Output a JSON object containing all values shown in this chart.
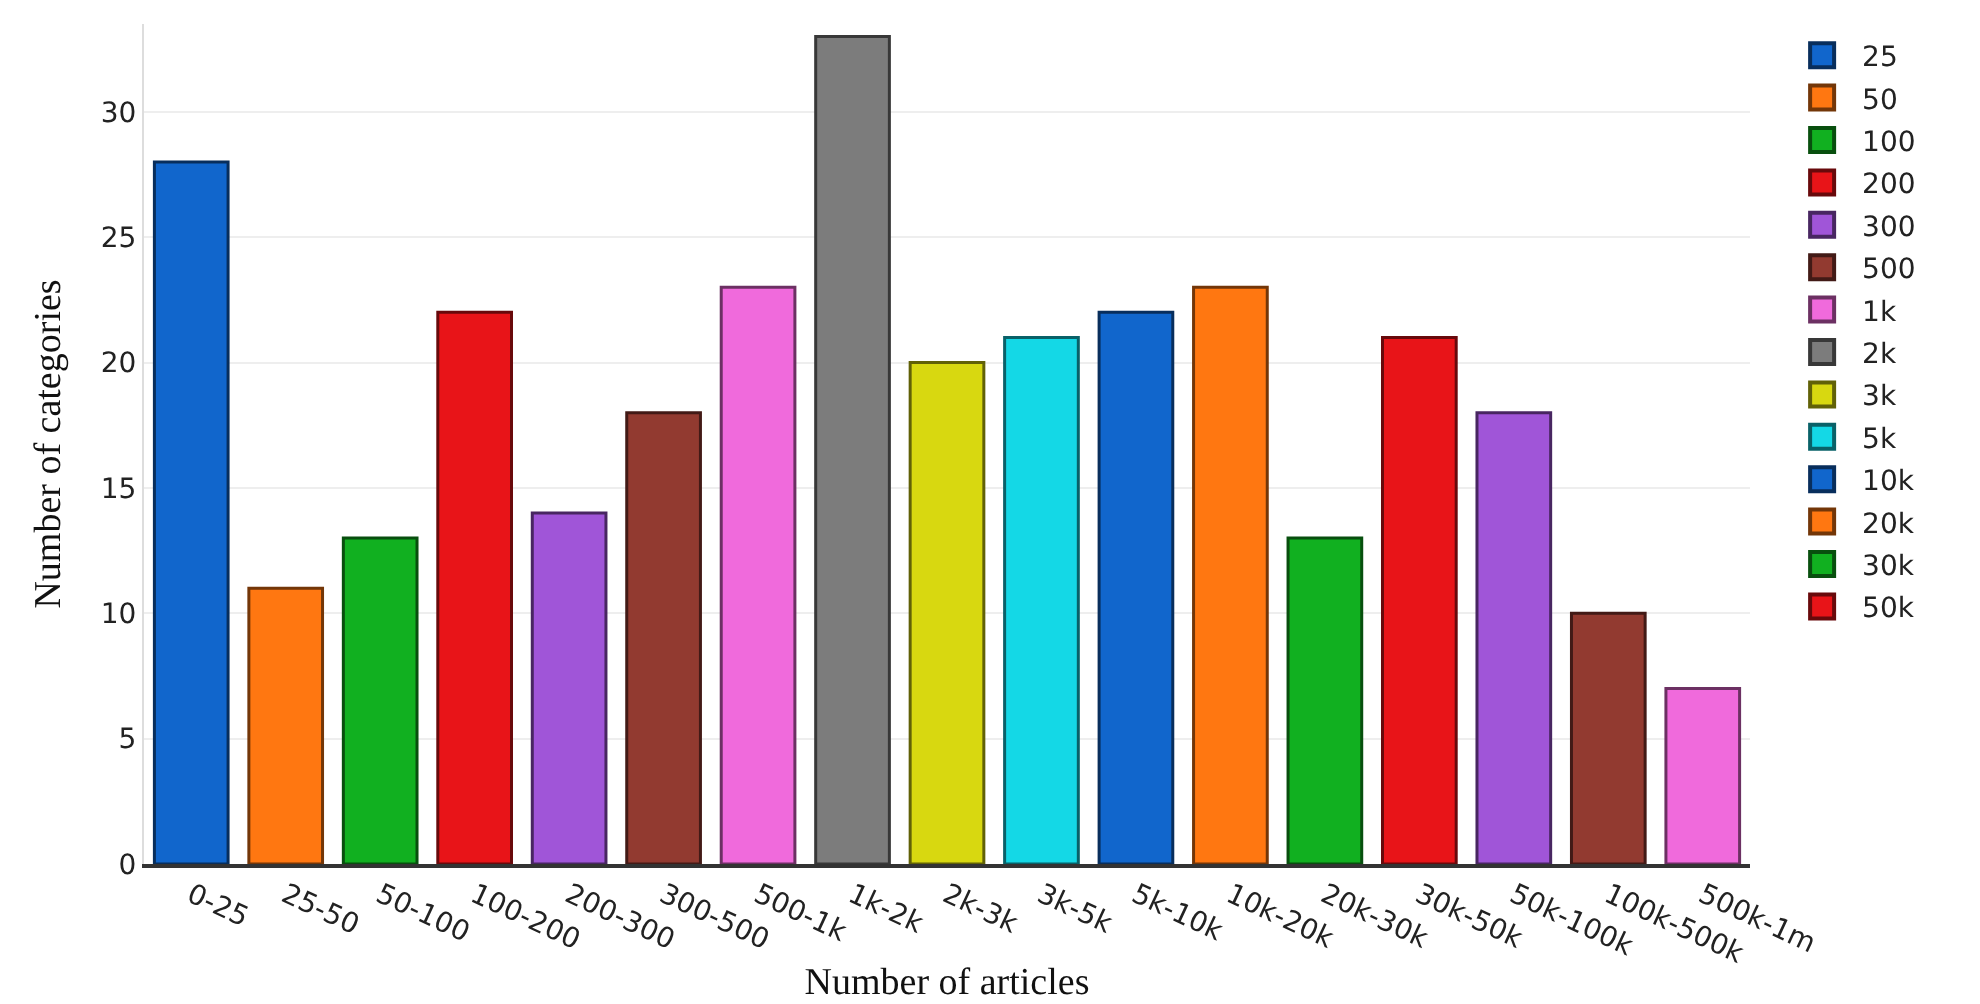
{
  "chart_data": {
    "type": "bar",
    "xlabel": "Number of articles",
    "ylabel": "Number of categories",
    "categories": [
      "0-25",
      "25-50",
      "50-100",
      "100-200",
      "200-300",
      "300-500",
      "500-1k",
      "1k-2k",
      "2k-3k",
      "3k-5k",
      "5k-10k",
      "10k-20k",
      "20k-30k",
      "30k-50k",
      "50k-100k",
      "100k-500k",
      "500k-1m"
    ],
    "series": [
      {
        "name": "25",
        "color": "#1166cc",
        "values": [
          28,
          null,
          null,
          null,
          null,
          null,
          null,
          null,
          null,
          null,
          null,
          null,
          null,
          null,
          null,
          null,
          null
        ]
      },
      {
        "name": "50",
        "color": "#ff7711",
        "values": [
          null,
          11,
          null,
          null,
          null,
          null,
          null,
          null,
          null,
          null,
          null,
          null,
          null,
          null,
          null,
          null,
          null
        ]
      },
      {
        "name": "100",
        "color": "#11b020",
        "values": [
          null,
          null,
          13,
          null,
          null,
          null,
          null,
          null,
          null,
          null,
          null,
          null,
          null,
          null,
          null,
          null,
          null
        ]
      },
      {
        "name": "200",
        "color": "#e81418",
        "values": [
          null,
          null,
          null,
          22,
          null,
          null,
          null,
          null,
          null,
          null,
          null,
          null,
          null,
          null,
          null,
          null,
          null
        ]
      },
      {
        "name": "300",
        "color": "#a055d8",
        "values": [
          null,
          null,
          null,
          null,
          14,
          null,
          null,
          null,
          null,
          null,
          null,
          null,
          null,
          null,
          null,
          null,
          null
        ]
      },
      {
        "name": "500",
        "color": "#923a30",
        "values": [
          null,
          null,
          null,
          null,
          null,
          18,
          null,
          null,
          null,
          null,
          null,
          null,
          null,
          null,
          null,
          null,
          null
        ]
      },
      {
        "name": "1k",
        "color": "#f06adc",
        "values": [
          null,
          null,
          null,
          null,
          null,
          null,
          23,
          null,
          null,
          null,
          null,
          null,
          null,
          null,
          null,
          null,
          null
        ]
      },
      {
        "name": "2k",
        "color": "#7c7c7c",
        "values": [
          null,
          null,
          null,
          null,
          null,
          null,
          null,
          33,
          null,
          null,
          null,
          null,
          null,
          null,
          null,
          null,
          null
        ]
      },
      {
        "name": "3k",
        "color": "#d8d810",
        "values": [
          null,
          null,
          null,
          null,
          null,
          null,
          null,
          null,
          20,
          null,
          null,
          null,
          null,
          null,
          null,
          null,
          null
        ]
      },
      {
        "name": "5k",
        "color": "#14d8e6",
        "values": [
          null,
          null,
          null,
          null,
          null,
          null,
          null,
          null,
          null,
          21,
          null,
          null,
          null,
          null,
          null,
          null,
          null
        ]
      },
      {
        "name": "10k",
        "color": "#1166cc",
        "values": [
          null,
          null,
          null,
          null,
          null,
          null,
          null,
          null,
          null,
          null,
          22,
          null,
          null,
          null,
          null,
          null,
          null
        ]
      },
      {
        "name": "20k",
        "color": "#ff7711",
        "values": [
          null,
          null,
          null,
          null,
          null,
          null,
          null,
          null,
          null,
          null,
          null,
          23,
          null,
          null,
          null,
          null,
          null
        ]
      },
      {
        "name": "30k",
        "color": "#11b020",
        "values": [
          null,
          null,
          null,
          null,
          null,
          null,
          null,
          null,
          null,
          null,
          null,
          null,
          13,
          null,
          null,
          null,
          null
        ]
      },
      {
        "name": "50k",
        "color": "#e81418",
        "values": [
          null,
          null,
          null,
          null,
          null,
          null,
          null,
          null,
          null,
          null,
          null,
          null,
          null,
          21,
          null,
          null,
          null
        ]
      },
      {
        "color": "#a055d8",
        "values": [
          null,
          null,
          null,
          null,
          null,
          null,
          null,
          null,
          null,
          null,
          null,
          null,
          null,
          null,
          18,
          null,
          null
        ]
      },
      {
        "color": "#923a30",
        "values": [
          null,
          null,
          null,
          null,
          null,
          null,
          null,
          null,
          null,
          null,
          null,
          null,
          null,
          null,
          null,
          10,
          null
        ]
      },
      {
        "color": "#f06adc",
        "values": [
          null,
          null,
          null,
          null,
          null,
          null,
          null,
          null,
          null,
          null,
          null,
          null,
          null,
          null,
          null,
          null,
          7
        ]
      }
    ],
    "ylim": [
      0,
      33.5
    ],
    "yticks": [
      0,
      5,
      10,
      15,
      20,
      25,
      30
    ],
    "grid": "y",
    "legend": "right"
  }
}
